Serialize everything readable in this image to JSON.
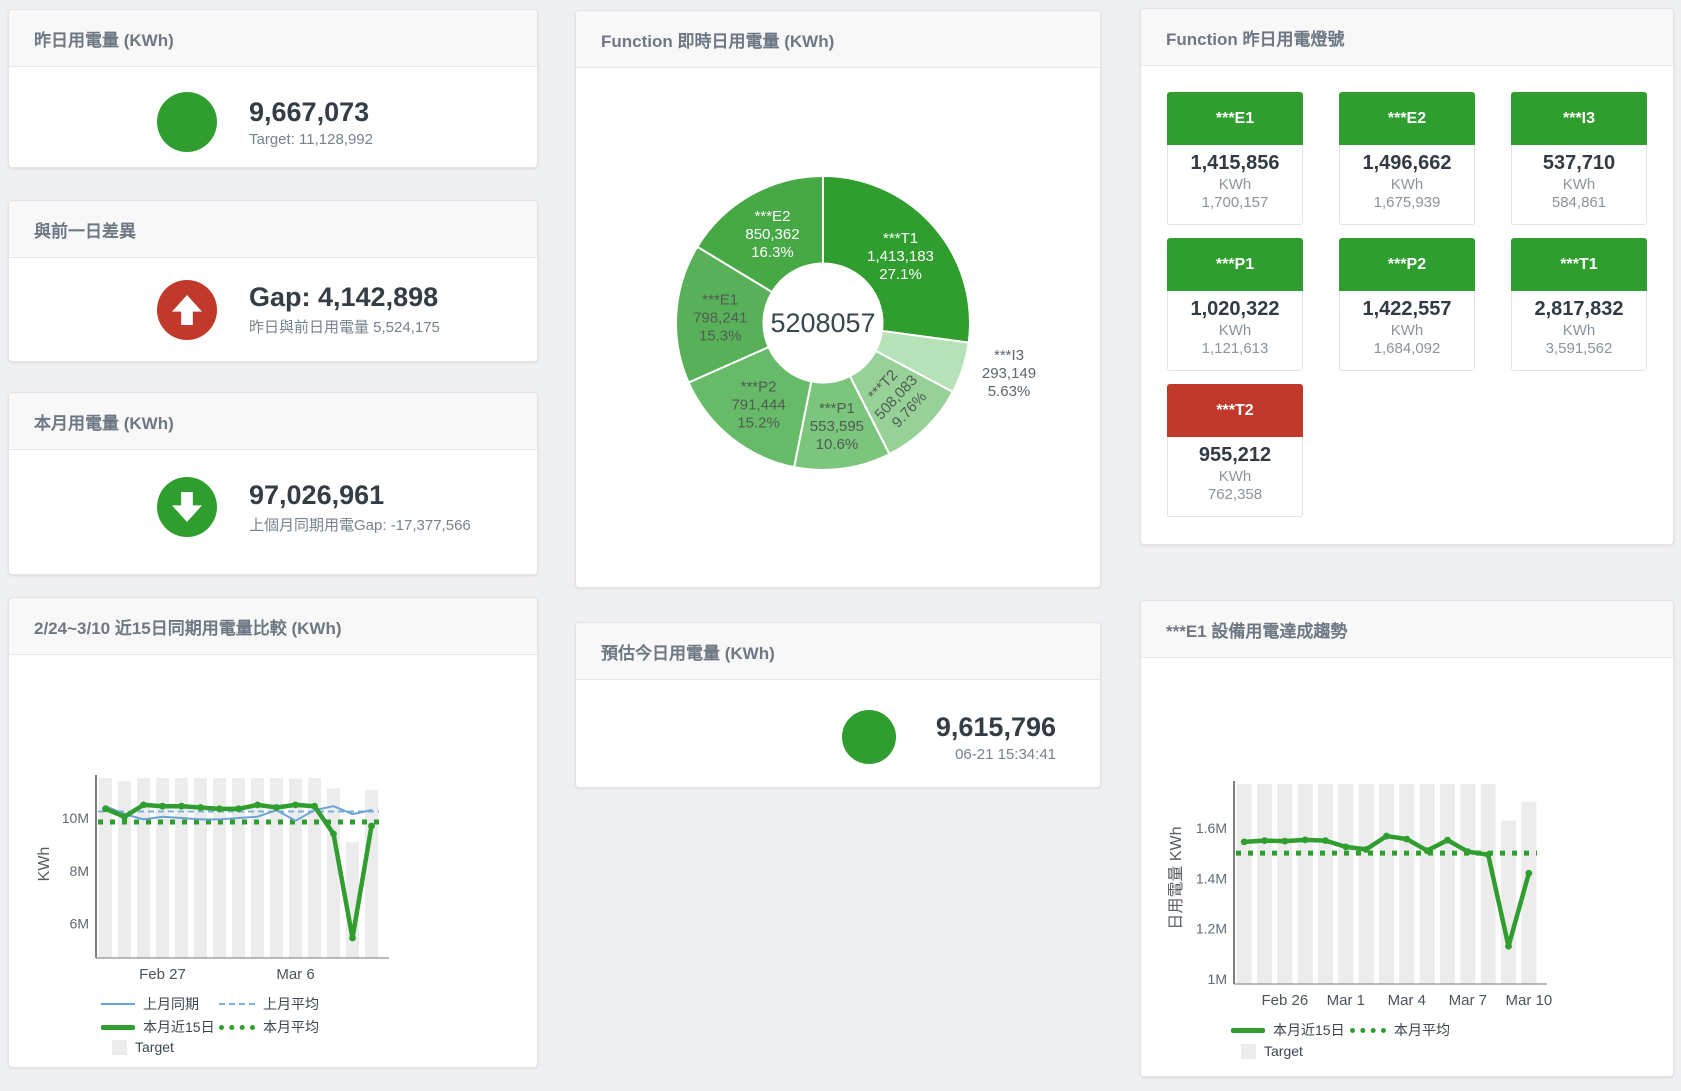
{
  "colors": {
    "green": "#2f9e2f",
    "red": "#c0392b",
    "blue": "#6da3d5",
    "blue_avg": "#7cb0dd",
    "bar": "#ececec"
  },
  "cards": {
    "yesterday": {
      "title": "昨日用電量 (KWh)",
      "value": "9,667,073",
      "subtitle": "Target: 11,128,992"
    },
    "day_gap": {
      "title": "與前一日差異",
      "value": "Gap: 4,142,898",
      "subtitle": "昨日與前日用電量 5,524,175"
    },
    "month": {
      "title": "本月用電量 (KWh)",
      "value": "97,026,961",
      "subtitle": "上個月同期用電Gap: -17,377,566"
    },
    "estimate": {
      "title": "預估今日用電量 (KWh)",
      "value": "9,615,796",
      "subtitle": "06-21 15:34:41"
    },
    "donut": {
      "title": "Function 即時日用電量 (KWh)"
    },
    "lights": {
      "title": "Function 昨日用電燈號",
      "tiles": [
        {
          "name": "***E1",
          "value": "1,415,856",
          "unit": "KWh",
          "target": "1,700,157",
          "status": "green"
        },
        {
          "name": "***E2",
          "value": "1,496,662",
          "unit": "KWh",
          "target": "1,675,939",
          "status": "green"
        },
        {
          "name": "***I3",
          "value": "537,710",
          "unit": "KWh",
          "target": "584,861",
          "status": "green"
        },
        {
          "name": "***P1",
          "value": "1,020,322",
          "unit": "KWh",
          "target": "1,121,613",
          "status": "green"
        },
        {
          "name": "***P2",
          "value": "1,422,557",
          "unit": "KWh",
          "target": "1,684,092",
          "status": "green"
        },
        {
          "name": "***T1",
          "value": "2,817,832",
          "unit": "KWh",
          "target": "3,591,562",
          "status": "green"
        },
        {
          "name": "***T2",
          "value": "955,212",
          "unit": "KWh",
          "target": "762,358",
          "status": "red"
        }
      ]
    },
    "trend_compare": {
      "title": "2/24~3/10 近15日同期用電量比較 (KWh)"
    },
    "trend_e1": {
      "title": "***E1 設備用電達成趨勢"
    }
  },
  "chart_data": [
    {
      "type": "pie",
      "title": "Function 即時日用電量 (KWh)",
      "center_label": "5208057",
      "unit": "KWh",
      "series": [
        {
          "name": "***T1",
          "value": 1413183,
          "pct": "27.1%",
          "pct_num": 27.1,
          "color": "#2f9e2f",
          "label_color": "#ffffff"
        },
        {
          "name": "***I3",
          "value": 293149,
          "pct": "5.63%",
          "pct_num": 5.63,
          "color": "#b7e1b7",
          "label_color": "#5b6770",
          "outside": true
        },
        {
          "name": "***T2",
          "value": 508083,
          "pct": "9.76%",
          "pct_num": 9.76,
          "color": "#97d197",
          "label_color": "#4f5d55",
          "rotate": -47
        },
        {
          "name": "***P1",
          "value": 553595,
          "pct": "10.6%",
          "pct_num": 10.6,
          "color": "#7cc57c",
          "label_color": "#4f5d55"
        },
        {
          "name": "***P2",
          "value": 791444,
          "pct": "15.2%",
          "pct_num": 15.2,
          "color": "#67ba67",
          "label_color": "#4f5d55"
        },
        {
          "name": "***E1",
          "value": 798241,
          "pct": "15.3%",
          "pct_num": 15.3,
          "color": "#58b158",
          "label_color": "#4f5d55"
        },
        {
          "name": "***E2",
          "value": 850362,
          "pct": "16.3%",
          "pct_num": 16.3,
          "color": "#46a946",
          "label_color": "#ffffff"
        }
      ]
    },
    {
      "type": "line",
      "title": "2/24~3/10 近15日同期用電量比較 (KWh)",
      "unit": "million KWh",
      "ylabel": "KWh",
      "categories": [
        "Feb 24",
        "Feb 25",
        "Feb 26",
        "Feb 27",
        "Feb 28",
        "Mar 1",
        "Mar 2",
        "Mar 3",
        "Mar 4",
        "Mar 5",
        "Mar 6",
        "Mar 7",
        "Mar 8",
        "Mar 9",
        "Mar 10"
      ],
      "ylim": [
        4.69,
        11.52
      ],
      "ytick_values": [
        6,
        8,
        10
      ],
      "ytick_labels": [
        "6M",
        "8M",
        "10M"
      ],
      "xtick_indices": [
        3,
        10
      ],
      "series": [
        {
          "name": "Target",
          "type": "bar",
          "values": [
            11.54,
            11.4,
            11.54,
            11.54,
            11.54,
            11.54,
            11.54,
            11.54,
            11.54,
            11.54,
            11.5,
            11.54,
            11.13,
            9.08,
            11.06
          ]
        },
        {
          "name": "上月同期",
          "type": "line",
          "style": "blue",
          "values": [
            10.45,
            10.15,
            9.95,
            10.05,
            10.0,
            9.95,
            9.95,
            10.0,
            10.05,
            10.3,
            9.9,
            10.3,
            10.45,
            10.15,
            10.3
          ]
        },
        {
          "name": "上月平均",
          "type": "avg",
          "style": "blue-dashed",
          "value": 10.25
        },
        {
          "name": "本月近15日",
          "type": "line",
          "style": "green-thick",
          "values": [
            10.35,
            10.05,
            10.5,
            10.45,
            10.45,
            10.4,
            10.35,
            10.35,
            10.5,
            10.4,
            10.5,
            10.45,
            9.4,
            5.45,
            9.7
          ]
        },
        {
          "name": "本月平均",
          "type": "avg",
          "style": "green-dotted",
          "value": 9.85
        }
      ]
    },
    {
      "type": "line",
      "title": "***E1 設備用電達成趨勢",
      "unit": "million KWh",
      "ylabel": "日用電量 KWh",
      "categories": [
        "Feb 24",
        "Feb 25",
        "Feb 26",
        "Feb 27",
        "Feb 28",
        "Mar 1",
        "Mar 2",
        "Mar 3",
        "Mar 4",
        "Mar 5",
        "Mar 6",
        "Mar 7",
        "Mar 8",
        "Mar 9",
        "Mar 10"
      ],
      "ylim": [
        0.98,
        1.775
      ],
      "ytick_values": [
        1,
        1.2,
        1.4,
        1.6
      ],
      "ytick_labels": [
        "1M",
        "1.2M",
        "1.4M",
        "1.6M"
      ],
      "xtick_indices": [
        2,
        5,
        8,
        11,
        14
      ],
      "series": [
        {
          "name": "Target",
          "type": "bar",
          "values": [
            1.775,
            1.775,
            1.775,
            1.775,
            1.775,
            1.775,
            1.775,
            1.775,
            1.775,
            1.775,
            1.775,
            1.775,
            1.775,
            1.63,
            1.705
          ]
        },
        {
          "name": "本月近15日",
          "type": "line",
          "style": "green-thick",
          "values": [
            1.545,
            1.55,
            1.548,
            1.553,
            1.55,
            1.525,
            1.515,
            1.568,
            1.556,
            1.51,
            1.552,
            1.506,
            1.494,
            1.13,
            1.42
          ]
        },
        {
          "name": "本月平均",
          "type": "avg",
          "style": "green-dotted",
          "value": 1.5
        }
      ]
    }
  ]
}
